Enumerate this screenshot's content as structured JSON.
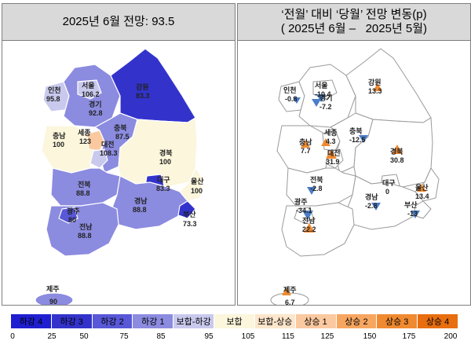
{
  "left_panel": {
    "title": "2025년 6월 전망: 93.5",
    "regions": [
      {
        "id": "seoul",
        "name": "서울",
        "value": "106.2"
      },
      {
        "id": "incheon",
        "name": "인천",
        "value": "95.8"
      },
      {
        "id": "gyeonggi",
        "name": "경기",
        "value": "92.8"
      },
      {
        "id": "gangwon",
        "name": "강원",
        "value": "83.3"
      },
      {
        "id": "chungbuk",
        "name": "충북",
        "value": "87.5"
      },
      {
        "id": "sejong",
        "name": "세종",
        "value": "123"
      },
      {
        "id": "chungnam",
        "name": "충남",
        "value": "100"
      },
      {
        "id": "daejeon",
        "name": "대전",
        "value": "108.3"
      },
      {
        "id": "gyeongbuk",
        "name": "경북",
        "value": "100"
      },
      {
        "id": "daegu",
        "name": "대구",
        "value": "83.3"
      },
      {
        "id": "ulsan",
        "name": "울산",
        "value": "100"
      },
      {
        "id": "jeonbuk",
        "name": "전북",
        "value": "88.8"
      },
      {
        "id": "gyeongnam",
        "name": "경남",
        "value": "88.8"
      },
      {
        "id": "busan",
        "name": "부산",
        "value": "73.3"
      },
      {
        "id": "gwangju",
        "name": "광주",
        "value": "80"
      },
      {
        "id": "jeonnam",
        "name": "전남",
        "value": "88.8"
      },
      {
        "id": "jeju",
        "name": "제주",
        "value": "90"
      }
    ]
  },
  "right_panel": {
    "title_line1": "‘전월’ 대비 ‘당월’ 전망 변동(p)",
    "title_line2": "( 2025년 6월 –   2025년 5월)",
    "regions": [
      {
        "id": "seoul",
        "name": "서울",
        "value": "-10.4"
      },
      {
        "id": "incheon",
        "name": "인천",
        "value": "-0.8"
      },
      {
        "id": "gyeonggi",
        "name": "경기",
        "value": "-7.2"
      },
      {
        "id": "gangwon",
        "name": "강원",
        "value": "13.3"
      },
      {
        "id": "chungbuk",
        "name": "충북",
        "value": "-12.5"
      },
      {
        "id": "sejong",
        "name": "세종",
        "value": "4.3"
      },
      {
        "id": "chungnam",
        "name": "충남",
        "value": "7.7"
      },
      {
        "id": "daejeon",
        "name": "대전",
        "value": "31.9"
      },
      {
        "id": "gyeongbuk",
        "name": "경북",
        "value": "30.8"
      },
      {
        "id": "daegu",
        "name": "대구",
        "value": "0"
      },
      {
        "id": "ulsan",
        "name": "울산",
        "value": "13.4"
      },
      {
        "id": "jeonbuk",
        "name": "전북",
        "value": "-2.8"
      },
      {
        "id": "gyeongnam",
        "name": "경남",
        "value": "-2.8"
      },
      {
        "id": "busan",
        "name": "부산",
        "value": "-13"
      },
      {
        "id": "gwangju",
        "name": "광주",
        "value": "-34.1"
      },
      {
        "id": "jeonnam",
        "name": "전남",
        "value": "22.2"
      },
      {
        "id": "jeju",
        "name": "제주",
        "value": "6.7"
      }
    ]
  },
  "legend": [
    {
      "label": "하강 4",
      "color": "#1f1fd1"
    },
    {
      "label": "하강 3",
      "color": "#3333cc"
    },
    {
      "label": "하강 2",
      "color": "#5858d8"
    },
    {
      "label": "하강 1",
      "color": "#8b8be0"
    },
    {
      "label": "보합-하강",
      "color": "#c9c9ee"
    },
    {
      "label": "보합",
      "color": "#fbf6dc"
    },
    {
      "label": "보합-상승",
      "color": "#fde6cc"
    },
    {
      "label": "상승 1",
      "color": "#fbc9a0"
    },
    {
      "label": "상승 2",
      "color": "#f7a660"
    },
    {
      "label": "상승 3",
      "color": "#f08a30"
    },
    {
      "label": "상승 4",
      "color": "#e86e10"
    }
  ],
  "ticks": [
    "0",
    "25",
    "50",
    "75",
    "85",
    "95",
    "105",
    "115",
    "125",
    "150",
    "175",
    "200"
  ]
}
